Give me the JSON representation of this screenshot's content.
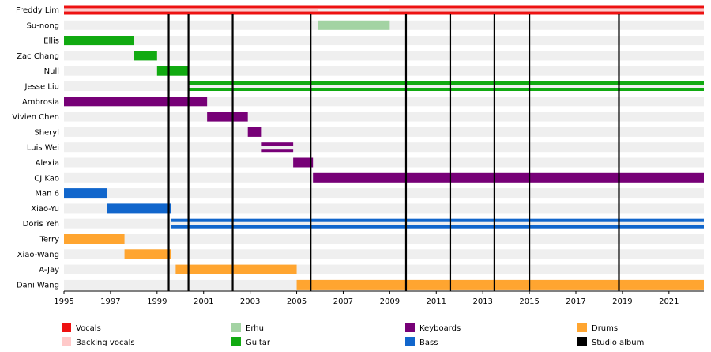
{
  "chart_data": {
    "type": "timeline",
    "xlim": [
      1995.0,
      2022.5
    ],
    "x_ticks": [
      1995,
      1997,
      1999,
      2001,
      2003,
      2005,
      2007,
      2009,
      2011,
      2013,
      2015,
      2017,
      2019,
      2021
    ],
    "studio_albums": [
      1999.5,
      2000.35,
      2002.25,
      2005.6,
      2009.7,
      2011.6,
      2013.5,
      2015.0,
      2018.85
    ],
    "colors": {
      "vocals": "#ee1111",
      "backing": "#ffc9c9",
      "erhu": "#a3d3a3",
      "guitar": "#11aa11",
      "keyboards": "#770077",
      "bass": "#1166cc",
      "drums": "#ffa530",
      "album": "#000000"
    },
    "members": [
      {
        "name": "Freddy Lim",
        "segments": [
          {
            "role": "vocals",
            "start": 1995.0,
            "end": 2022.5,
            "style": "double"
          },
          {
            "role": "backing",
            "start": 1995.0,
            "end": 2005.9,
            "style": "center"
          },
          {
            "role": "backing",
            "start": 2009.0,
            "end": 2022.5,
            "style": "center"
          }
        ]
      },
      {
        "name": "Su-nong",
        "segments": [
          {
            "role": "erhu",
            "start": 2005.9,
            "end": 2009.0,
            "style": "full"
          }
        ]
      },
      {
        "name": "Ellis",
        "segments": [
          {
            "role": "guitar",
            "start": 1995.0,
            "end": 1998.0,
            "style": "full"
          }
        ]
      },
      {
        "name": "Zac Chang",
        "segments": [
          {
            "role": "guitar",
            "start": 1998.0,
            "end": 1999.0,
            "style": "full"
          }
        ]
      },
      {
        "name": "Null",
        "segments": [
          {
            "role": "guitar",
            "start": 1999.0,
            "end": 2000.35,
            "style": "full"
          }
        ]
      },
      {
        "name": "Jesse Liu",
        "segments": [
          {
            "role": "guitar",
            "start": 2000.35,
            "end": 2022.5,
            "style": "double"
          }
        ]
      },
      {
        "name": "Ambrosia",
        "segments": [
          {
            "role": "keyboards",
            "start": 1995.0,
            "end": 2001.15,
            "style": "full"
          }
        ]
      },
      {
        "name": "Vivien Chen",
        "segments": [
          {
            "role": "keyboards",
            "start": 2001.15,
            "end": 2002.9,
            "style": "full"
          }
        ]
      },
      {
        "name": "Sheryl",
        "segments": [
          {
            "role": "keyboards",
            "start": 2002.9,
            "end": 2003.5,
            "style": "full"
          }
        ]
      },
      {
        "name": "Luis Wei",
        "segments": [
          {
            "role": "keyboards",
            "start": 2003.5,
            "end": 2004.85,
            "style": "double"
          }
        ]
      },
      {
        "name": "Alexia",
        "segments": [
          {
            "role": "keyboards",
            "start": 2004.85,
            "end": 2005.7,
            "style": "full"
          }
        ]
      },
      {
        "name": "CJ Kao",
        "segments": [
          {
            "role": "keyboards",
            "start": 2005.7,
            "end": 2022.5,
            "style": "full"
          }
        ]
      },
      {
        "name": "Man 6",
        "segments": [
          {
            "role": "bass",
            "start": 1995.0,
            "end": 1996.85,
            "style": "full"
          }
        ]
      },
      {
        "name": "Xiao-Yu",
        "segments": [
          {
            "role": "bass",
            "start": 1996.85,
            "end": 1999.6,
            "style": "full"
          }
        ]
      },
      {
        "name": "Doris Yeh",
        "segments": [
          {
            "role": "bass",
            "start": 1999.6,
            "end": 2022.5,
            "style": "double"
          }
        ]
      },
      {
        "name": "Terry",
        "segments": [
          {
            "role": "drums",
            "start": 1995.0,
            "end": 1997.6,
            "style": "full"
          }
        ]
      },
      {
        "name": "Xiao-Wang",
        "segments": [
          {
            "role": "drums",
            "start": 1997.6,
            "end": 1999.6,
            "style": "full"
          }
        ]
      },
      {
        "name": "A-Jay",
        "segments": [
          {
            "role": "drums",
            "start": 1999.8,
            "end": 2005.0,
            "style": "full"
          }
        ]
      },
      {
        "name": "Dani Wang",
        "segments": [
          {
            "role": "drums",
            "start": 2005.0,
            "end": 2022.5,
            "style": "full"
          }
        ]
      }
    ],
    "legend": [
      {
        "role": "vocals",
        "label": "Vocals"
      },
      {
        "role": "backing",
        "label": "Backing vocals"
      },
      {
        "role": "erhu",
        "label": "Erhu"
      },
      {
        "role": "guitar",
        "label": "Guitar"
      },
      {
        "role": "keyboards",
        "label": "Keyboards"
      },
      {
        "role": "bass",
        "label": "Bass"
      },
      {
        "role": "drums",
        "label": "Drums"
      },
      {
        "role": "album",
        "label": "Studio album"
      }
    ]
  }
}
